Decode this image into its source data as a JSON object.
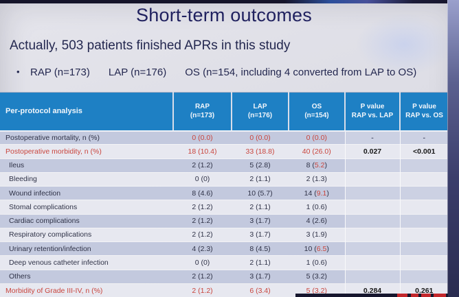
{
  "colors": {
    "header_blue": "#1e80c4",
    "row_alt_lavender": "#c3c9de",
    "row_light": "#e7e8f0",
    "highlight_red": "#c9453d",
    "title_navy": "#20215f",
    "logo_red": "#c3272b"
  },
  "slide": {
    "title": "Short-term outcomes",
    "subtitle": "Actually, 503 patients finished APRs in this study",
    "bullet_marker": "•",
    "bullet_items": [
      "RAP (n=173)",
      "LAP (n=176)",
      "OS (n=154, including 4 converted from LAP to OS)"
    ]
  },
  "table": {
    "corner_label": "Per-protocol analysis",
    "columns": [
      {
        "line1": "RAP",
        "line2": "(n=173)"
      },
      {
        "line1": "LAP",
        "line2": "(n=176)"
      },
      {
        "line1": "OS",
        "line2": "(n=154)"
      },
      {
        "line1": "P value",
        "line2": "RAP vs. LAP"
      },
      {
        "line1": "P value",
        "line2": "RAP vs. OS"
      }
    ],
    "rows": [
      {
        "label": "Postoperative mortality, n (%)",
        "indent": false,
        "label_red": false,
        "cells": [
          {
            "t": "0 (0.0)",
            "red": true
          },
          {
            "t": "0 (0.0)",
            "red": true
          },
          {
            "t": "0 (0.0)",
            "red": true
          },
          {
            "t": "-",
            "dim": true
          },
          {
            "t": "-",
            "dim": true
          }
        ]
      },
      {
        "label": "Postoperative morbidity, n (%)",
        "indent": false,
        "label_red": true,
        "cells": [
          {
            "t": "18 (10.4)",
            "red": true
          },
          {
            "t": "33 (18.8)",
            "red": true
          },
          {
            "t": "40 (26.0)",
            "red": true
          },
          {
            "t": "0.027",
            "bold": true
          },
          {
            "t": "<0.001",
            "bold": true
          }
        ]
      },
      {
        "label": "Ileus",
        "indent": true,
        "label_red": false,
        "cells": [
          {
            "t": "2 (1.2)"
          },
          {
            "t": "5 (2.8)"
          },
          {
            "t": "8 (5.2)",
            "hl": "5.2"
          },
          {
            "t": ""
          },
          {
            "t": ""
          }
        ]
      },
      {
        "label": "Bleeding",
        "indent": true,
        "label_red": false,
        "cells": [
          {
            "t": "0 (0)"
          },
          {
            "t": "2 (1.1)"
          },
          {
            "t": "2 (1.3)"
          },
          {
            "t": ""
          },
          {
            "t": ""
          }
        ]
      },
      {
        "label": "Wound infection",
        "indent": true,
        "label_red": false,
        "cells": [
          {
            "t": "8 (4.6)"
          },
          {
            "t": "10 (5.7)"
          },
          {
            "t": "14 (9.1)",
            "hl": "9.1"
          },
          {
            "t": ""
          },
          {
            "t": ""
          }
        ]
      },
      {
        "label": "Stomal complications",
        "indent": true,
        "label_red": false,
        "cells": [
          {
            "t": "2 (1.2)"
          },
          {
            "t": "2 (1.1)"
          },
          {
            "t": "1 (0.6)"
          },
          {
            "t": ""
          },
          {
            "t": ""
          }
        ]
      },
      {
        "label": "Cardiac complications",
        "indent": true,
        "label_red": false,
        "cells": [
          {
            "t": "2 (1.2)"
          },
          {
            "t": "3 (1.7)"
          },
          {
            "t": "4 (2.6)"
          },
          {
            "t": ""
          },
          {
            "t": ""
          }
        ]
      },
      {
        "label": "Respiratory complications",
        "indent": true,
        "label_red": false,
        "cells": [
          {
            "t": "2 (1.2)"
          },
          {
            "t": "3 (1.7)"
          },
          {
            "t": "3 (1.9)"
          },
          {
            "t": ""
          },
          {
            "t": ""
          }
        ]
      },
      {
        "label": "Urinary retention/infection",
        "indent": true,
        "label_red": false,
        "cells": [
          {
            "t": "4 (2.3)"
          },
          {
            "t": "8 (4.5)"
          },
          {
            "t": "10 (6.5)",
            "hl": "6.5"
          },
          {
            "t": ""
          },
          {
            "t": ""
          }
        ]
      },
      {
        "label": "Deep venous catheter infection",
        "indent": true,
        "label_red": false,
        "cells": [
          {
            "t": "0 (0)"
          },
          {
            "t": "2 (1.1)"
          },
          {
            "t": "1 (0.6)"
          },
          {
            "t": ""
          },
          {
            "t": ""
          }
        ]
      },
      {
        "label": "Others",
        "indent": true,
        "label_red": false,
        "cells": [
          {
            "t": "2 (1.2)"
          },
          {
            "t": "3 (1.7)"
          },
          {
            "t": "5 (3.2)"
          },
          {
            "t": ""
          },
          {
            "t": ""
          }
        ]
      },
      {
        "label": "Morbidity of Grade III-IV, n (%)",
        "indent": false,
        "label_red": true,
        "cells": [
          {
            "t": "2 (1.2)",
            "red": true
          },
          {
            "t": "6 (3.4)",
            "red": true
          },
          {
            "t": "5 (3.2)",
            "red": true
          },
          {
            "t": "0.284",
            "bold": true
          },
          {
            "t": "0.261",
            "bold": true
          }
        ]
      }
    ]
  }
}
